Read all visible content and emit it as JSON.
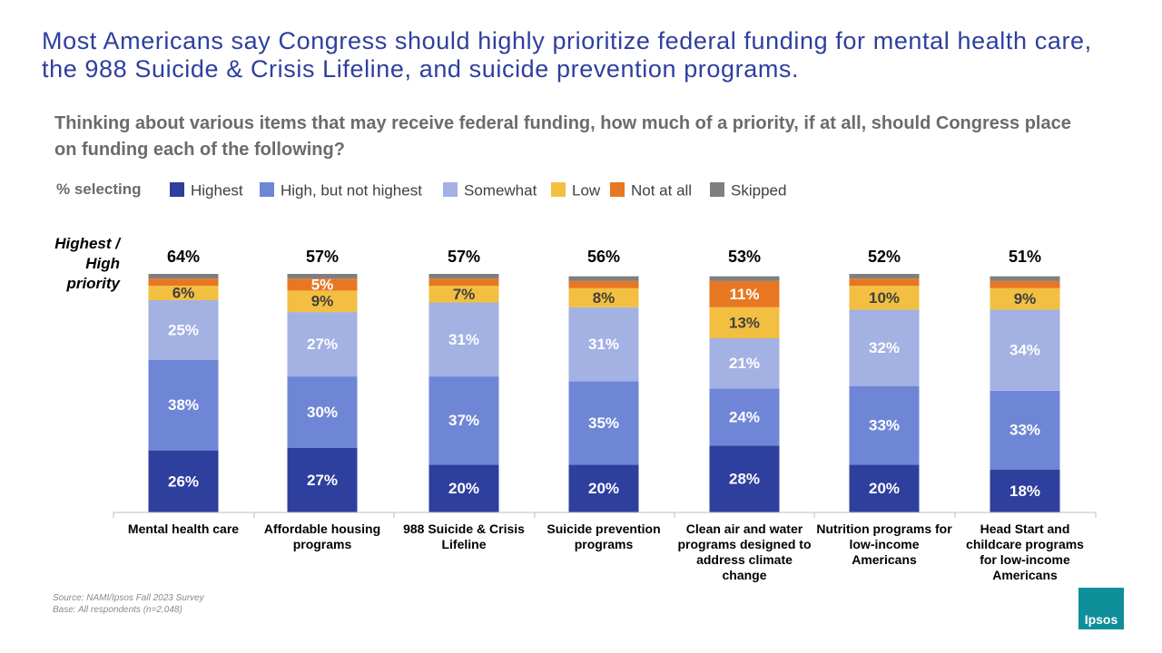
{
  "title": "Most Americans say Congress should highly prioritize federal funding for mental health care, the 988 Suicide & Crisis Lifeline, and suicide prevention programs.",
  "subtitle": "Thinking about various items that may receive federal funding, how much of a priority, if at all, should Congress place on funding each of the following?",
  "legend_label": "% selecting",
  "totals_heading": "Highest / High priority",
  "source": "Source: NAMI/Ipsos Fall 2023 Survey",
  "base": "Base: All respondents (n=2,048)",
  "logo": "Ipsos",
  "chart_data": {
    "type": "stacked_bar",
    "categories": [
      "Mental health care",
      "Affordable housing programs",
      "988 Suicide & Crisis Lifeline",
      "Suicide prevention programs",
      "Clean air and water programs designed to address climate change",
      "Nutrition programs for low-income Americans",
      "Head Start and childcare programs for low-income Americans"
    ],
    "ylim": [
      0,
      100
    ],
    "totals": {
      "values": [
        64,
        57,
        57,
        56,
        53,
        52,
        51
      ],
      "value_labels": [
        "64%",
        "57%",
        "57%",
        "56%",
        "53%",
        "52%",
        "51%"
      ]
    },
    "series": [
      {
        "name": "Highest",
        "color": "#2e3f9e",
        "label_color": "#ffffff",
        "values": [
          26,
          27,
          20,
          20,
          28,
          20,
          18
        ],
        "value_labels": [
          "26%",
          "27%",
          "20%",
          "20%",
          "28%",
          "20%",
          "18%"
        ]
      },
      {
        "name": "High, but not highest",
        "color": "#6f86d6",
        "label_color": "#ffffff",
        "values": [
          38,
          30,
          37,
          35,
          24,
          33,
          33
        ],
        "value_labels": [
          "38%",
          "30%",
          "37%",
          "35%",
          "24%",
          "33%",
          "33%"
        ]
      },
      {
        "name": "Somewhat",
        "color": "#a3b1e3",
        "label_color": "#ffffff",
        "values": [
          25,
          27,
          31,
          31,
          21,
          32,
          34
        ],
        "value_labels": [
          "25%",
          "27%",
          "31%",
          "31%",
          "21%",
          "32%",
          "34%"
        ]
      },
      {
        "name": "Low",
        "color": "#f2bf40",
        "label_color": "#404040",
        "values": [
          6,
          9,
          7,
          8,
          13,
          10,
          9
        ],
        "value_labels": [
          "6%",
          "9%",
          "7%",
          "8%",
          "13%",
          "10%",
          "9%"
        ]
      },
      {
        "name": "Not at all",
        "color": "#e87722",
        "label_color": "#ffffff",
        "values": [
          3,
          5,
          3,
          3,
          11,
          3,
          3
        ],
        "value_labels": [
          null,
          "5%",
          null,
          null,
          "11%",
          null,
          null
        ]
      },
      {
        "name": "Skipped",
        "color": "#7f7f7f",
        "label_color": "#ffffff",
        "values": [
          2,
          2,
          2,
          2,
          2,
          2,
          2
        ],
        "value_labels": [
          null,
          null,
          null,
          null,
          null,
          null,
          null
        ]
      }
    ]
  }
}
